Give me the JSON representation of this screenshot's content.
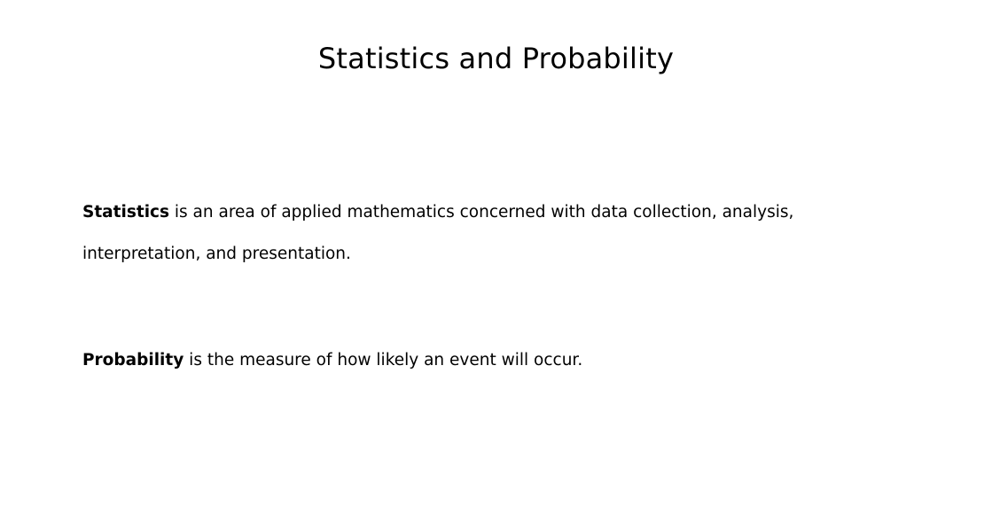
{
  "slide": {
    "title": "Statistics and Probability",
    "paragraphs": [
      {
        "term": "Statistics",
        "text": " is an area of applied mathematics concerned with data collection, analysis, interpretation, and presentation."
      },
      {
        "term": "Probability",
        "text": " is the measure of how likely an event will occur."
      }
    ]
  }
}
